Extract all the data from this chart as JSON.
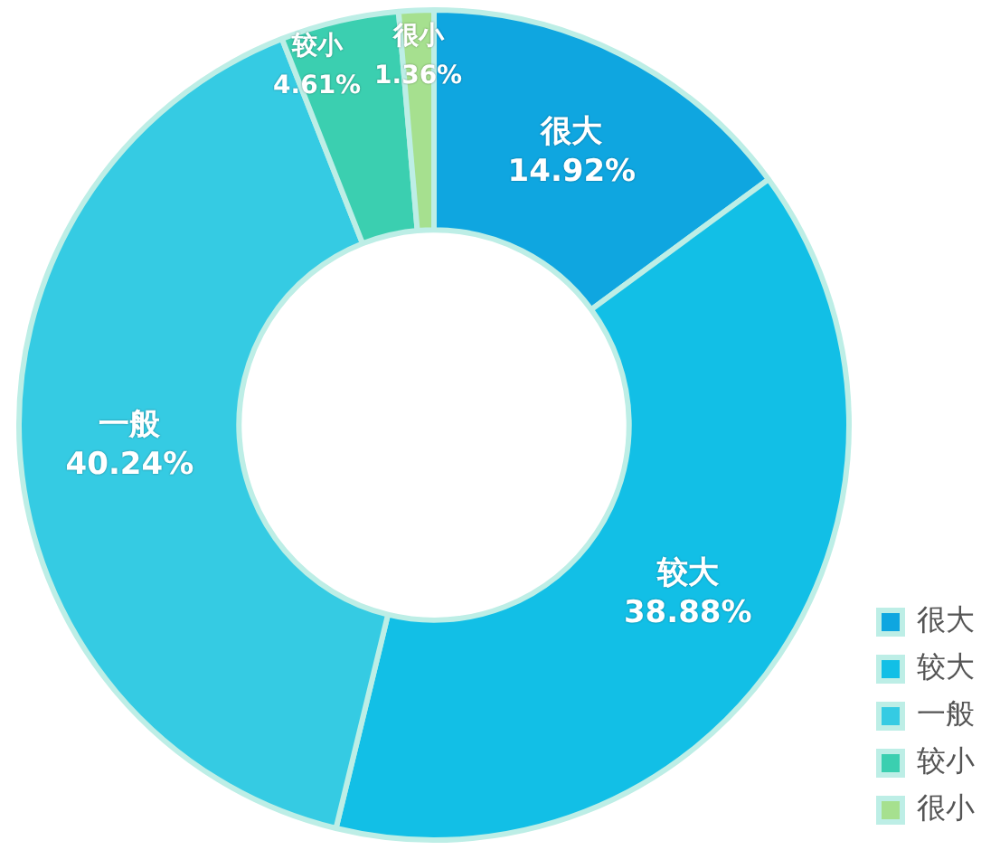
{
  "chart_data": {
    "type": "donut",
    "categories": [
      "很大",
      "较大",
      "一般",
      "较小",
      "很小"
    ],
    "values": [
      14.92,
      38.88,
      40.24,
      4.61,
      1.36
    ],
    "colors": [
      "#0fa6e0",
      "#12bfe6",
      "#35cbe3",
      "#3bcfb0",
      "#a6e08f"
    ],
    "value_labels": [
      "14.92%",
      "38.88%",
      "40.24%",
      "4.61%",
      "1.36%"
    ],
    "legend": "bottom right"
  }
}
